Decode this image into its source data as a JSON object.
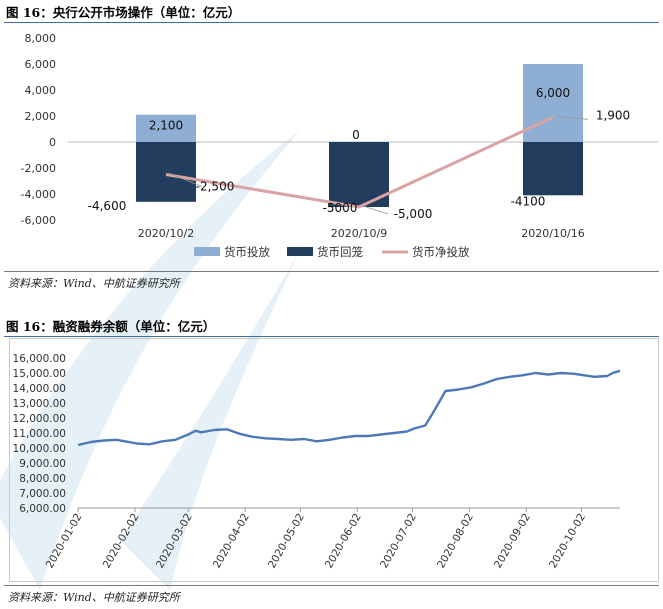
{
  "figure1": {
    "title": "图 16：央行公开市场操作（单位：亿元）",
    "source": "资料来源：Wind、中航证券研究所"
  },
  "figure2": {
    "title": "图 16：融资融券余额（单位：亿元）",
    "source": "资料来源：Wind、中航证券研究所"
  },
  "chart_data": [
    {
      "type": "bar",
      "categories": [
        "2020/10/2",
        "2020/10/9",
        "2020/10/16"
      ],
      "series": [
        {
          "name": "货币投放",
          "kind": "bar",
          "color": "#8eaed4",
          "values": [
            2100,
            0,
            6000
          ],
          "labels": [
            "2,100",
            "0",
            "6,000"
          ]
        },
        {
          "name": "货币回笼",
          "kind": "bar",
          "color": "#233d5e",
          "values": [
            -4600,
            -5000,
            -4100
          ],
          "labels": [
            "-4,600",
            "-5000",
            "-4100"
          ]
        },
        {
          "name": "货币净投放",
          "kind": "line",
          "color": "#d9a3a3",
          "values": [
            -2500,
            -5000,
            1900
          ],
          "labels": [
            "-2,500",
            "-5,000",
            "1,900"
          ]
        }
      ],
      "ylim": [
        -6000,
        8000
      ],
      "yticks": [
        -6000,
        -4000,
        -2000,
        0,
        2000,
        4000,
        6000,
        8000
      ],
      "ytick_labels": [
        "-6,000",
        "-4,000",
        "-2,000",
        "0",
        "2,000",
        "4,000",
        "6,000",
        "8,000"
      ],
      "legend": "bottom"
    },
    {
      "type": "line",
      "series": [
        {
          "color": "#4e79b8",
          "x": [
            "2020-01-02",
            "2020-01-09",
            "2020-01-16",
            "2020-01-23",
            "2020-02-03",
            "2020-02-10",
            "2020-02-17",
            "2020-02-24",
            "2020-03-02",
            "2020-03-06",
            "2020-03-09",
            "2020-03-16",
            "2020-03-23",
            "2020-03-30",
            "2020-04-06",
            "2020-04-13",
            "2020-04-20",
            "2020-04-27",
            "2020-05-04",
            "2020-05-11",
            "2020-05-18",
            "2020-05-25",
            "2020-06-01",
            "2020-06-08",
            "2020-06-15",
            "2020-06-22",
            "2020-06-29",
            "2020-07-03",
            "2020-07-06",
            "2020-07-09",
            "2020-07-13",
            "2020-07-20",
            "2020-07-27",
            "2020-08-03",
            "2020-08-10",
            "2020-08-17",
            "2020-08-24",
            "2020-08-31",
            "2020-09-07",
            "2020-09-14",
            "2020-09-21",
            "2020-09-28",
            "2020-10-09",
            "2020-10-16",
            "2020-10-19",
            "2020-10-23"
          ],
          "y": [
            10200,
            10400,
            10500,
            10550,
            10300,
            10250,
            10450,
            10550,
            10900,
            11150,
            11050,
            11200,
            11250,
            10950,
            10750,
            10650,
            10600,
            10550,
            10600,
            10450,
            10550,
            10700,
            10800,
            10800,
            10900,
            11000,
            11100,
            11300,
            11400,
            11500,
            12300,
            13800,
            13900,
            14050,
            14300,
            14600,
            14750,
            14850,
            15000,
            14900,
            15000,
            14950,
            14750,
            14800,
            15000,
            15150
          ]
        }
      ],
      "ylim": [
        6000,
        16000
      ],
      "yticks": [
        6000,
        7000,
        8000,
        9000,
        10000,
        11000,
        12000,
        13000,
        14000,
        15000,
        16000
      ],
      "ytick_labels": [
        "6,000.00",
        "7,000.00",
        "8,000.00",
        "9,000.00",
        "10,000.00",
        "11,000.00",
        "12,000.00",
        "13,000.00",
        "14,000.00",
        "15,000.00",
        "16,000.00"
      ],
      "xtick_labels": [
        "2020-01-02",
        "2020-02-02",
        "2020-03-02",
        "2020-04-02",
        "2020-05-02",
        "2020-06-02",
        "2020-07-02",
        "2020-08-02",
        "2020-09-02",
        "2020-10-02"
      ],
      "grid": false
    }
  ]
}
